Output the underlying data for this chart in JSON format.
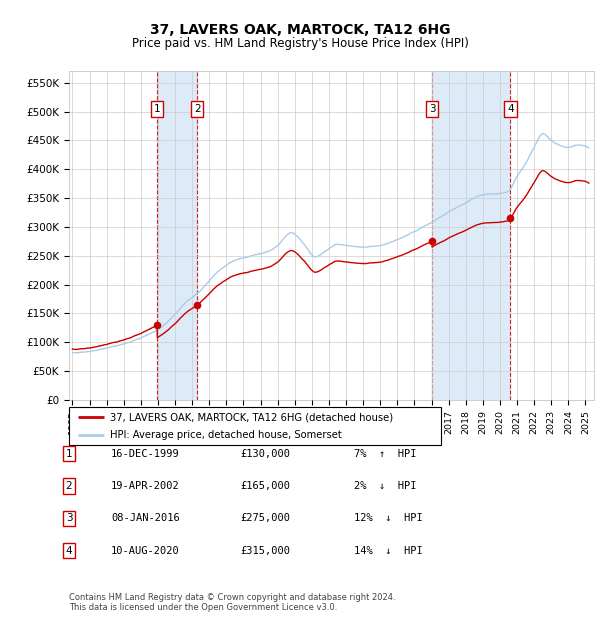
{
  "title": "37, LAVERS OAK, MARTOCK, TA12 6HG",
  "subtitle": "Price paid vs. HM Land Registry's House Price Index (HPI)",
  "ylim": [
    0,
    570000
  ],
  "yticks": [
    0,
    50000,
    100000,
    150000,
    200000,
    250000,
    300000,
    350000,
    400000,
    450000,
    500000,
    550000
  ],
  "ytick_labels": [
    "£0",
    "£50K",
    "£100K",
    "£150K",
    "£200K",
    "£250K",
    "£300K",
    "£350K",
    "£400K",
    "£450K",
    "£500K",
    "£550K"
  ],
  "hpi_color": "#aacce8",
  "price_color": "#cc0000",
  "background_color": "#ffffff",
  "grid_color": "#cccccc",
  "shade_color": "#ddeaf7",
  "purchases": [
    {
      "num": 1,
      "date": "16-DEC-1999",
      "date_x": 1999.96,
      "price": 130000,
      "pct": "7%",
      "dir": "↑"
    },
    {
      "num": 2,
      "date": "19-APR-2002",
      "date_x": 2002.3,
      "price": 165000,
      "pct": "2%",
      "dir": "↓"
    },
    {
      "num": 3,
      "date": "08-JAN-2016",
      "date_x": 2016.03,
      "price": 275000,
      "pct": "12%",
      "dir": "↓"
    },
    {
      "num": 4,
      "date": "10-AUG-2020",
      "date_x": 2020.61,
      "price": 315000,
      "pct": "14%",
      "dir": "↓"
    }
  ],
  "legend_line1": "37, LAVERS OAK, MARTOCK, TA12 6HG (detached house)",
  "legend_line2": "HPI: Average price, detached house, Somerset",
  "footnote": "Contains HM Land Registry data © Crown copyright and database right 2024.\nThis data is licensed under the Open Government Licence v3.0.",
  "xlim_start": 1994.8,
  "xlim_end": 2025.5,
  "hpi_anchors_x": [
    1995.0,
    1996.0,
    1997.0,
    1998.0,
    1999.0,
    2000.0,
    2001.0,
    2001.5,
    2002.5,
    2003.5,
    2004.5,
    2005.5,
    2006.5,
    2007.0,
    2007.8,
    2008.5,
    2009.2,
    2009.8,
    2010.5,
    2011.0,
    2012.0,
    2013.0,
    2014.0,
    2015.0,
    2016.0,
    2017.0,
    2018.0,
    2019.0,
    2020.0,
    2020.5,
    2021.0,
    2021.5,
    2022.0,
    2022.5,
    2023.0,
    2023.5,
    2024.0,
    2024.5,
    2025.0
  ],
  "hpi_anchors_y": [
    82000,
    84000,
    90000,
    97000,
    108000,
    122000,
    148000,
    165000,
    190000,
    222000,
    242000,
    250000,
    258000,
    268000,
    290000,
    272000,
    248000,
    258000,
    270000,
    268000,
    265000,
    268000,
    278000,
    292000,
    308000,
    326000,
    342000,
    356000,
    358000,
    362000,
    388000,
    410000,
    438000,
    462000,
    450000,
    442000,
    438000,
    442000,
    440000
  ],
  "title_fontsize": 10,
  "subtitle_fontsize": 8.5
}
